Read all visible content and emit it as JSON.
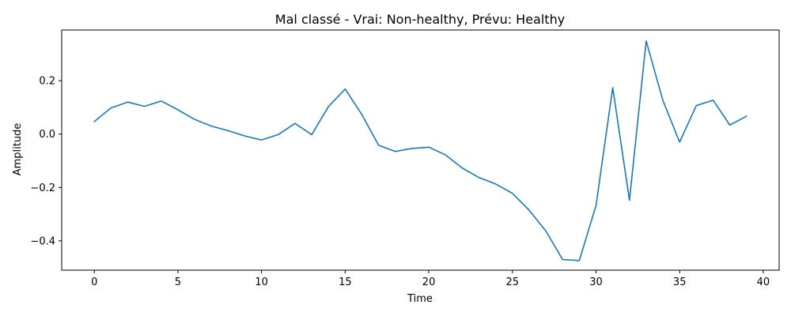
{
  "chart_data": {
    "type": "line",
    "title": "Mal classé - Vrai: Non-healthy, Prévu: Healthy",
    "xlabel": "Time",
    "ylabel": "Amplitude",
    "xlim": [
      -1.95,
      40.95
    ],
    "ylim": [
      -0.51,
      0.39
    ],
    "xticks": [
      0,
      5,
      10,
      15,
      20,
      25,
      30,
      35,
      40
    ],
    "yticks": [
      -0.4,
      -0.2,
      0.0,
      0.2
    ],
    "ytick_labels": [
      "−0.4",
      "−0.2",
      "0.0",
      "0.2"
    ],
    "grid": false,
    "series": [
      {
        "color": "#1f77b4",
        "x": [
          0,
          1,
          2,
          3,
          4,
          5,
          6,
          7,
          8,
          9,
          10,
          11,
          12,
          13,
          14,
          15,
          16,
          17,
          18,
          19,
          20,
          21,
          22,
          23,
          24,
          25,
          26,
          27,
          28,
          29,
          30,
          31,
          32,
          33,
          34,
          35,
          36,
          37,
          38,
          39
        ],
        "y": [
          0.047,
          0.098,
          0.12,
          0.104,
          0.124,
          0.091,
          0.055,
          0.03,
          0.013,
          -0.007,
          -0.022,
          -0.002,
          0.04,
          -0.002,
          0.103,
          0.169,
          0.073,
          -0.042,
          -0.065,
          -0.054,
          -0.049,
          -0.078,
          -0.127,
          -0.163,
          -0.187,
          -0.222,
          -0.285,
          -0.363,
          -0.47,
          -0.474,
          -0.268,
          0.174,
          -0.248,
          0.349,
          0.126,
          -0.03,
          0.107,
          0.127,
          0.034,
          0.067
        ]
      }
    ]
  }
}
